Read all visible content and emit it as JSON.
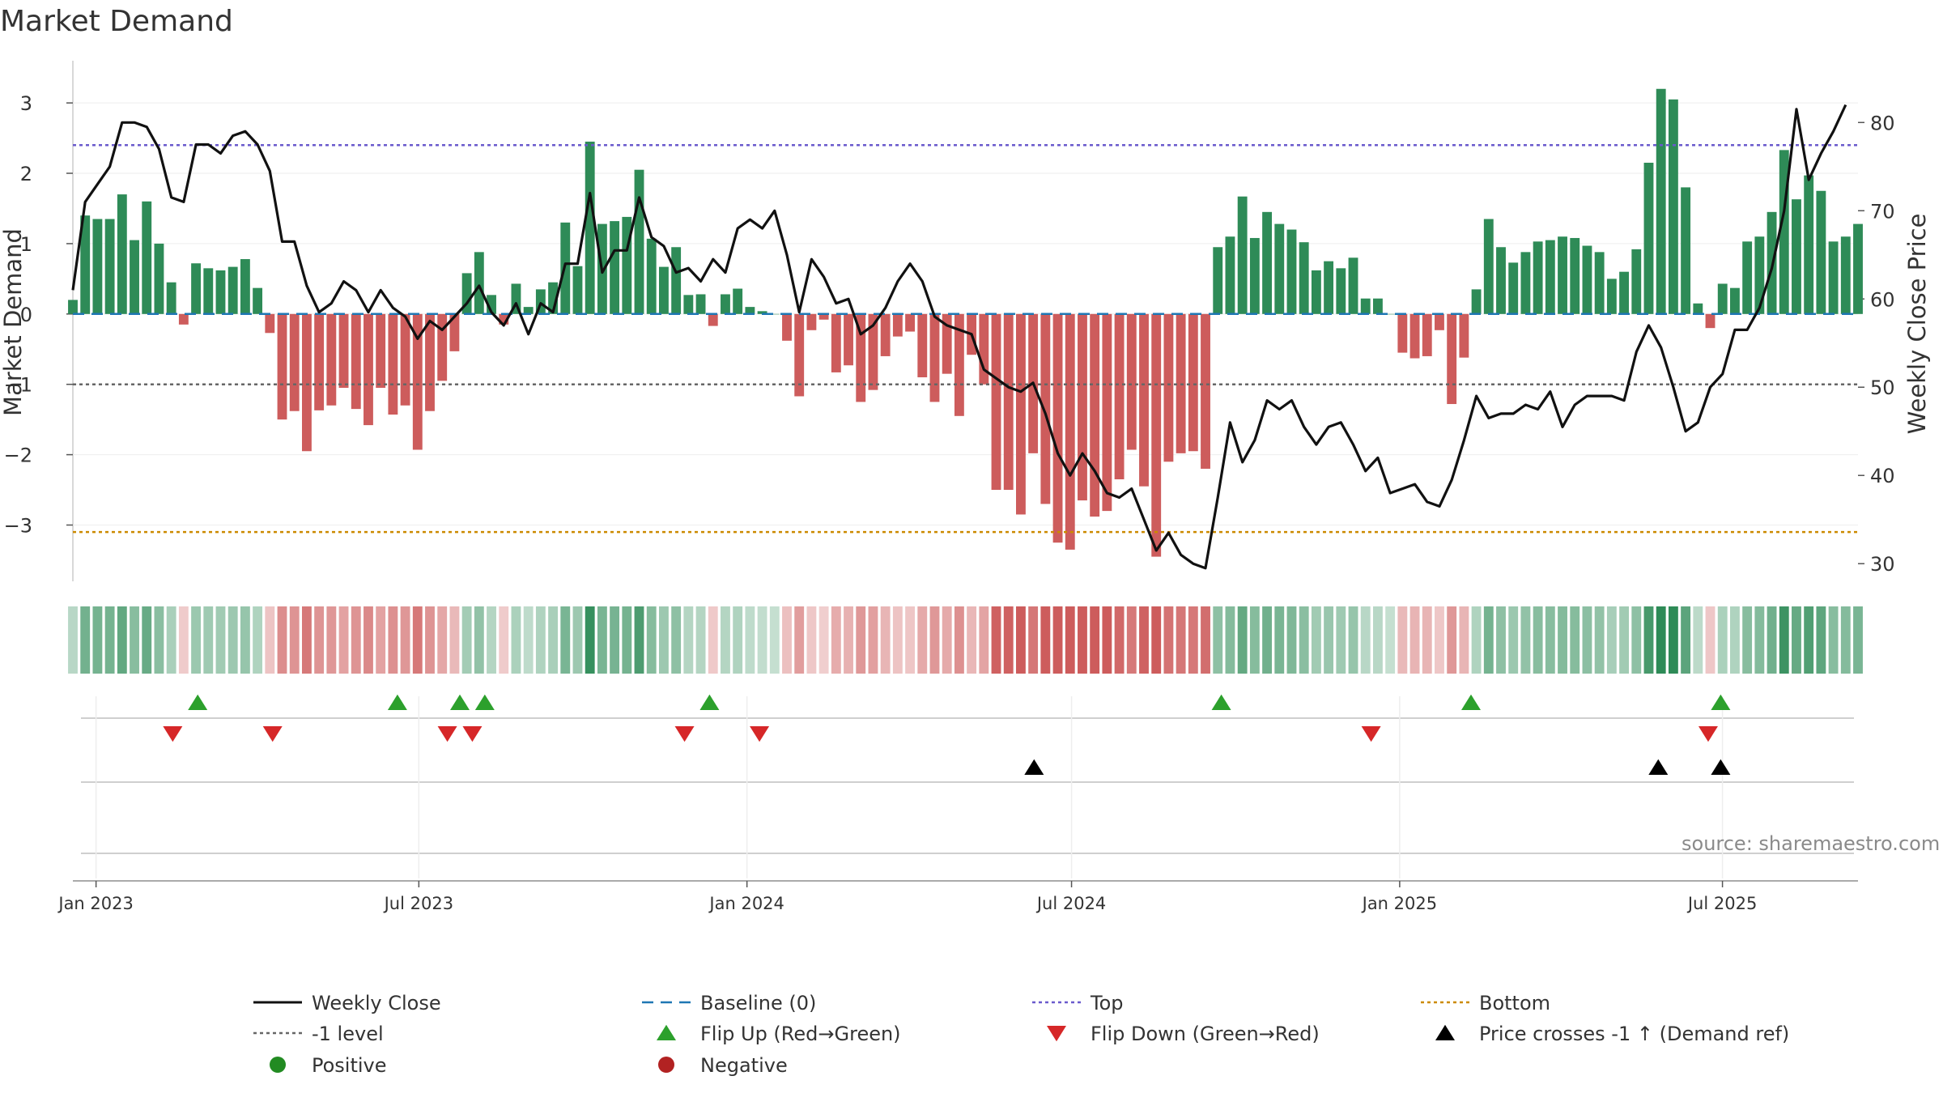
{
  "title": "Market Demand",
  "source_note": "source: sharemaestro.com",
  "colors": {
    "positive_bar": "#2e8b57",
    "negative_bar": "#cd5c5c",
    "price_line": "#111111",
    "baseline": "#1f77b4",
    "top_line": "#6a5acd",
    "minus1_line": "#666666",
    "bottom_line": "#cc8a00",
    "flip_up": "#2ca02c",
    "flip_down": "#d62728",
    "cross_marker": "#000000",
    "positive_dot": "#228b22",
    "negative_dot": "#b22222"
  },
  "chart_data": {
    "type": "bar",
    "left_axis": {
      "label": "Market Demand",
      "ticks": [
        3,
        2,
        1,
        0,
        -1,
        -2,
        -3
      ],
      "tick_labels": [
        "3",
        "2",
        "1",
        "0",
        "−1",
        "−2",
        "−3"
      ],
      "ylim": [
        -3.8,
        3.6
      ]
    },
    "right_axis": {
      "label": "Weekly Close Price",
      "ticks": [
        80,
        70,
        60,
        50,
        40,
        30
      ],
      "ylim": [
        28,
        87
      ]
    },
    "x_axis": {
      "date_range": [
        "2022-12-19",
        "2025-09-15"
      ],
      "ticks": [
        {
          "date": "2023-01-01",
          "label": "Jan 2023"
        },
        {
          "date": "2023-07-01",
          "label": "Jul 2023"
        },
        {
          "date": "2024-01-01",
          "label": "Jan 2024"
        },
        {
          "date": "2024-07-01",
          "label": "Jul 2024"
        },
        {
          "date": "2025-01-01",
          "label": "Jan 2025"
        },
        {
          "date": "2025-07-01",
          "label": "Jul 2025"
        }
      ]
    },
    "reference_lines": {
      "top": 2.4,
      "minus1": -1.0,
      "bottom": -3.1,
      "baseline": 0
    },
    "series": [
      {
        "name": "Market Demand",
        "kind": "bar",
        "start_date": "2022-12-19",
        "step": "weekly",
        "values": [
          0.2,
          1.4,
          1.35,
          1.35,
          1.7,
          1.05,
          1.6,
          1.0,
          0.45,
          -0.15,
          0.72,
          0.65,
          0.62,
          0.67,
          0.78,
          0.37,
          -0.27,
          -1.5,
          -1.38,
          -1.95,
          -1.37,
          -1.3,
          -1.05,
          -1.35,
          -1.58,
          -1.05,
          -1.43,
          -1.3,
          -1.93,
          -1.38,
          -0.95,
          -0.53,
          0.58,
          0.88,
          0.27,
          -0.15,
          0.43,
          0.1,
          0.35,
          0.45,
          1.3,
          0.68,
          2.45,
          1.28,
          1.32,
          1.38,
          2.05,
          1.07,
          0.67,
          0.95,
          0.27,
          0.28,
          -0.17,
          0.28,
          0.36,
          0.1,
          0.04,
          0.0,
          -0.38,
          -1.17,
          -0.23,
          -0.08,
          -0.83,
          -0.73,
          -1.25,
          -1.08,
          -0.6,
          -0.32,
          -0.25,
          -0.9,
          -1.25,
          -0.85,
          -1.45,
          -0.58,
          -1.0,
          -2.5,
          -2.5,
          -2.85,
          -1.98,
          -2.7,
          -3.25,
          -3.35,
          -2.65,
          -2.88,
          -2.8,
          -2.35,
          -1.93,
          -2.45,
          -3.45,
          -2.1,
          -1.98,
          -1.95,
          -2.2,
          0.95,
          1.1,
          1.67,
          1.08,
          1.45,
          1.28,
          1.2,
          1.02,
          0.62,
          0.75,
          0.65,
          0.8,
          0.22,
          0.22,
          0.0,
          -0.55,
          -0.63,
          -0.6,
          -0.23,
          -1.28,
          -0.62,
          0.35,
          1.35,
          0.95,
          0.73,
          0.88,
          1.03,
          1.05,
          1.1,
          1.08,
          0.97,
          0.88,
          0.5,
          0.6,
          0.92,
          2.15,
          3.2,
          3.05,
          1.8,
          0.15,
          -0.2,
          0.43,
          0.37,
          1.03,
          1.1,
          1.45,
          2.33,
          1.63,
          1.97,
          1.75,
          1.03,
          1.1,
          1.28
        ]
      },
      {
        "name": "Weekly Close",
        "kind": "line",
        "start_date": "2022-12-19",
        "step": "weekly",
        "values": [
          61,
          71,
          73,
          75,
          80,
          80,
          79.5,
          77,
          71.5,
          71,
          77.5,
          77.5,
          76.5,
          78.5,
          79,
          77.5,
          74.5,
          66.5,
          66.5,
          61.5,
          58.5,
          59.5,
          62,
          61,
          58.5,
          61,
          59,
          58,
          55.5,
          57.5,
          56.5,
          58,
          59.5,
          61.5,
          58.5,
          57,
          59.5,
          56,
          59.5,
          58.5,
          64,
          64,
          72,
          63,
          65.5,
          65.5,
          71.5,
          67,
          66,
          63,
          63.5,
          62,
          64.5,
          63,
          68,
          69,
          68,
          70,
          65,
          58.5,
          64.5,
          62.5,
          59.5,
          60,
          56,
          57,
          59,
          62,
          64,
          62,
          58,
          57,
          56.5,
          56,
          52,
          51,
          50,
          49.5,
          50.5,
          47,
          42.5,
          40,
          42.5,
          40.5,
          38,
          37.5,
          38.5,
          35,
          31.5,
          33.5,
          31,
          30,
          29.5,
          37.5,
          46,
          41.5,
          44,
          48.5,
          47.5,
          48.5,
          45.5,
          43.5,
          45.5,
          46,
          43.5,
          40.5,
          42,
          38,
          38.5,
          39,
          37,
          36.5,
          39.5,
          44,
          49,
          46.5,
          47,
          47,
          48,
          47.5,
          49.5,
          45.5,
          48,
          49,
          49,
          49,
          48.5,
          54,
          57,
          54.5,
          50,
          45,
          46,
          50,
          51.5,
          56.5,
          56.5,
          59,
          63.5,
          70,
          81.5,
          73.5,
          76.5,
          79,
          82
        ]
      },
      {
        "name": "Flip Up (Red→Green)",
        "kind": "event",
        "dates": [
          "2023-02-27",
          "2023-06-19",
          "2023-07-24",
          "2023-08-07",
          "2023-12-11",
          "2024-09-23",
          "2025-02-10",
          "2025-06-30"
        ]
      },
      {
        "name": "Flip Down (Green→Red)",
        "kind": "event",
        "dates": [
          "2023-02-13",
          "2023-04-10",
          "2023-07-17",
          "2023-07-31",
          "2023-11-27",
          "2024-01-08",
          "2024-12-16",
          "2025-06-23"
        ]
      },
      {
        "name": "Price crosses -1 ↑ (Demand ref)",
        "kind": "event",
        "dates": [
          "2024-06-10",
          "2025-05-26",
          "2025-06-30"
        ]
      }
    ],
    "legend": {
      "placement": "bottom",
      "entries": [
        {
          "label": "Weekly Close",
          "marker": "line",
          "color": "#111111"
        },
        {
          "label": "Baseline (0)",
          "marker": "dashed",
          "color": "#1f77b4"
        },
        {
          "label": "Top",
          "marker": "dotted",
          "color": "#6a5acd"
        },
        {
          "label": "Bottom",
          "marker": "dotted",
          "color": "#cc8a00"
        },
        {
          "label": "-1 level",
          "marker": "dotted",
          "color": "#666666"
        },
        {
          "label": "Flip Up (Red→Green)",
          "marker": "triangle-up",
          "color": "#2ca02c"
        },
        {
          "label": "Flip Down (Green→Red)",
          "marker": "triangle-down",
          "color": "#d62728"
        },
        {
          "label": "Price crosses -1 ↑ (Demand ref)",
          "marker": "triangle-up",
          "color": "#000000"
        },
        {
          "label": "Positive",
          "marker": "dot",
          "color": "#228b22"
        },
        {
          "label": "Negative",
          "marker": "dot",
          "color": "#b22222"
        }
      ]
    }
  }
}
